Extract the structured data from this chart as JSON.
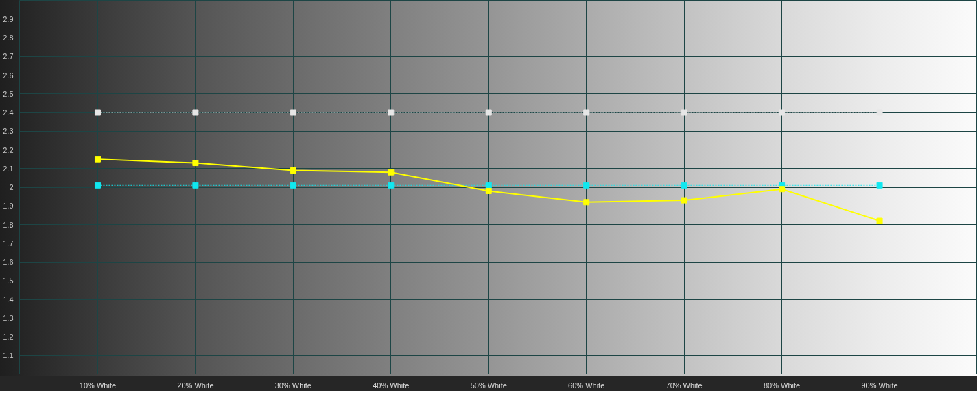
{
  "chart_data": {
    "type": "line",
    "categories": [
      "10% White",
      "20% White",
      "30% White",
      "40% White",
      "50% White",
      "60% White",
      "70% White",
      "80% White",
      "90% White"
    ],
    "series": [
      {
        "color": "#e6e6e6",
        "line_style": "dotted",
        "values": [
          2.4,
          2.4,
          2.4,
          2.4,
          2.4,
          2.4,
          2.4,
          2.4,
          2.4
        ]
      },
      {
        "color": "#10e8f0",
        "line_style": "dotted",
        "values": [
          2.01,
          2.01,
          2.01,
          2.01,
          2.01,
          2.01,
          2.01,
          2.01,
          2.01
        ]
      },
      {
        "color": "#ffff00",
        "line_style": "solid",
        "values": [
          2.15,
          2.13,
          2.09,
          2.08,
          1.98,
          1.92,
          1.93,
          1.99,
          1.82
        ]
      }
    ],
    "ylim": [
      1.0,
      3.0
    ],
    "yticks": [
      1.1,
      1.2,
      1.3,
      1.4,
      1.5,
      1.6,
      1.7,
      1.8,
      1.9,
      2,
      2.1,
      2.2,
      2.3,
      2.4,
      2.5,
      2.6,
      2.7,
      2.8,
      2.9
    ],
    "grid": true,
    "marker": "square"
  }
}
